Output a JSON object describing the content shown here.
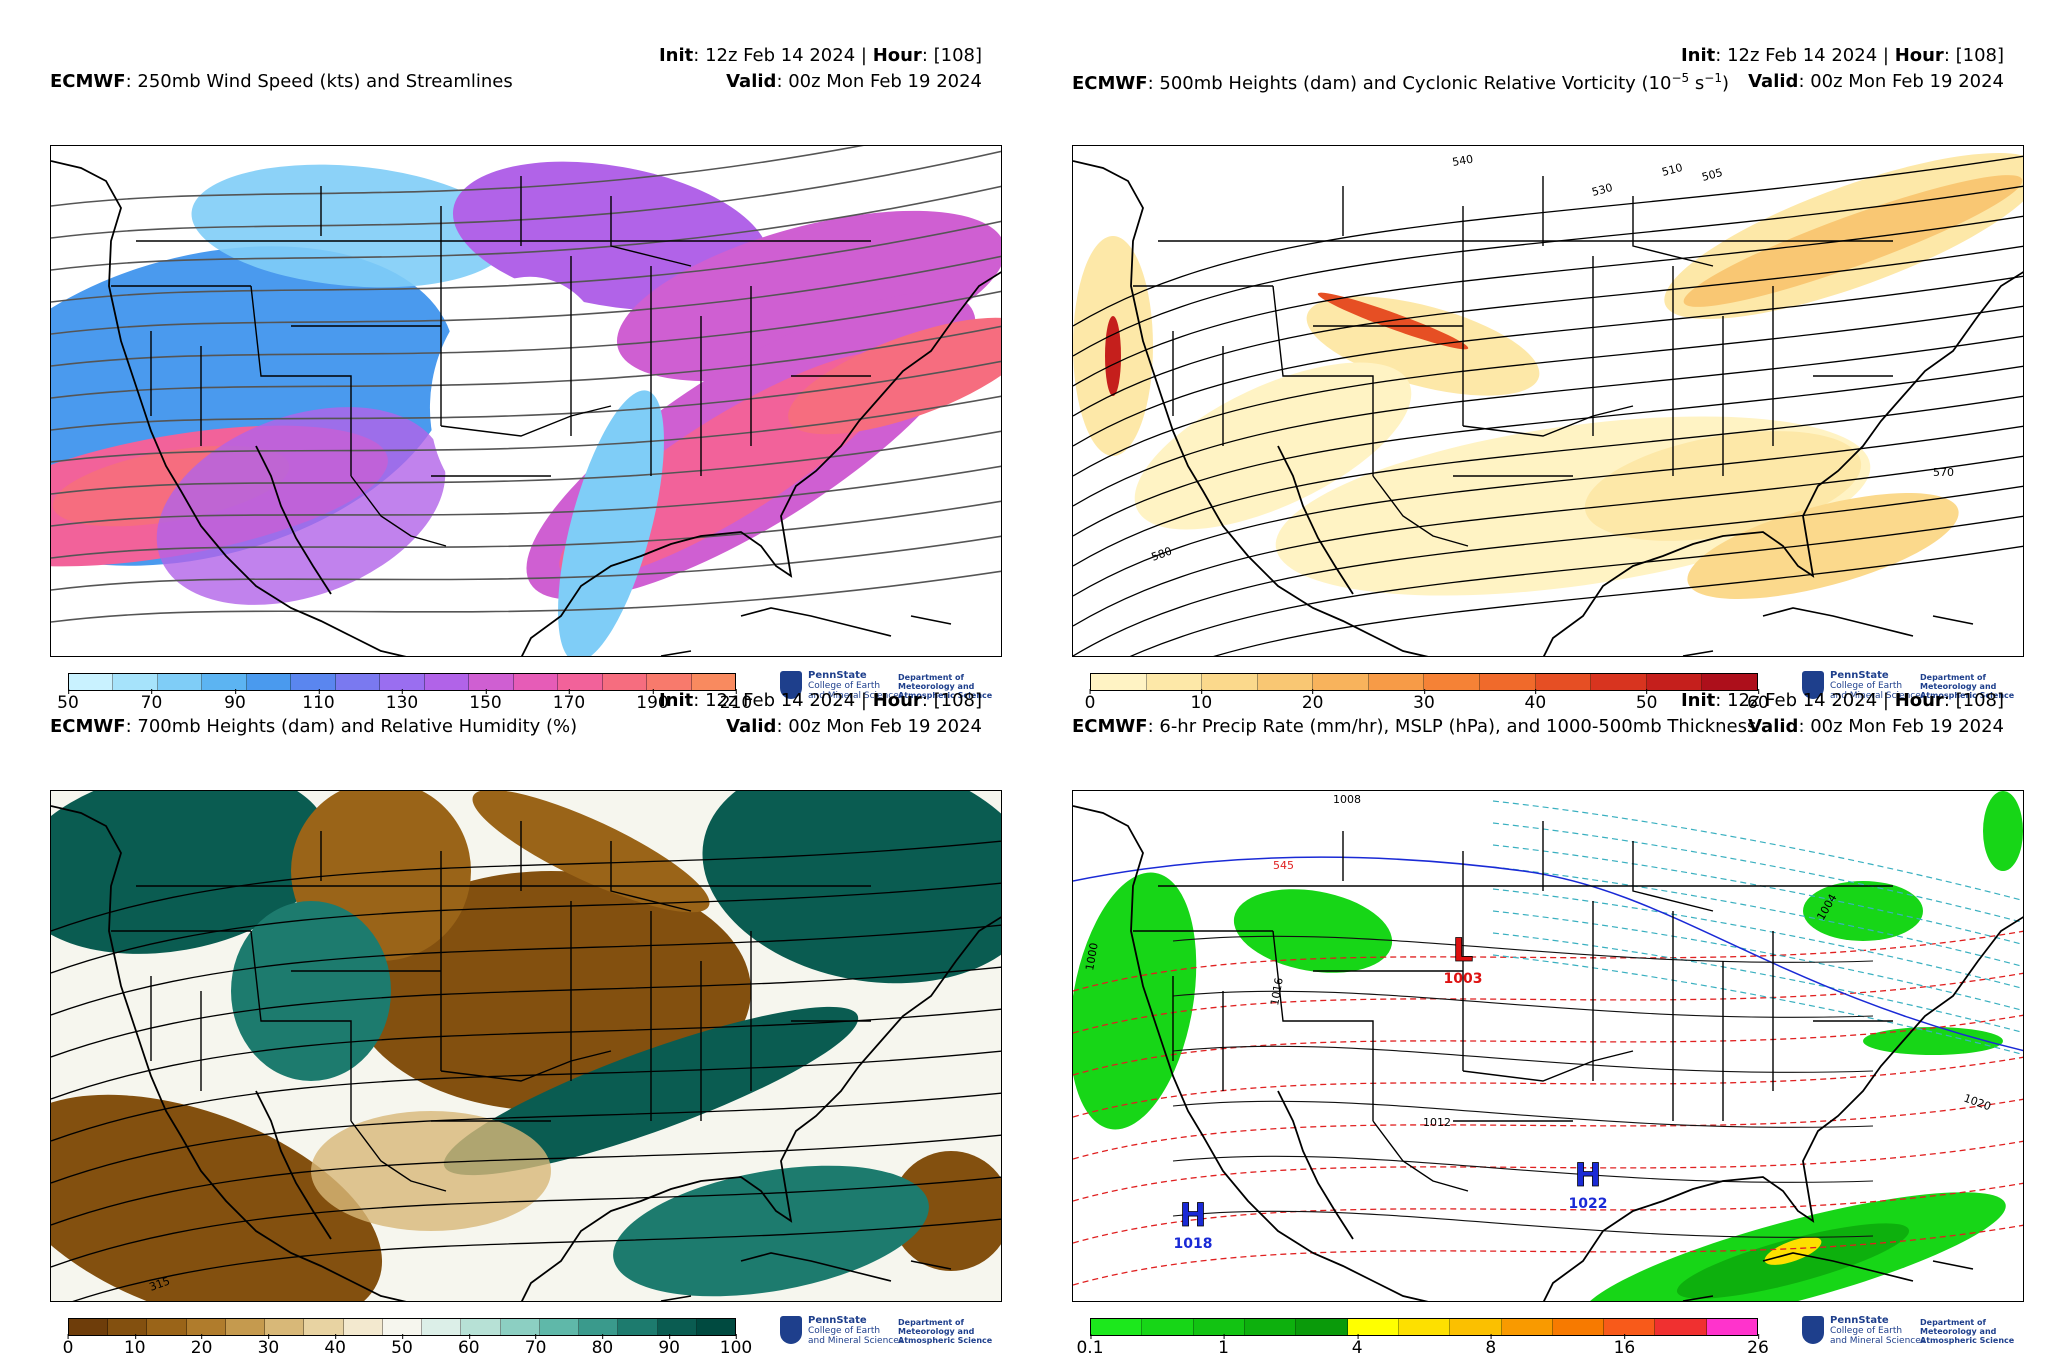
{
  "panels": [
    {
      "model": "ECMWF",
      "title": ": 250mb Wind Speed (kts) and Streamlines",
      "init_label": "Init",
      "init_value": ": 12z Feb 14 2024 | ",
      "hour_label": "Hour",
      "hour_value": ": [108]",
      "valid_label": "Valid",
      "valid_value": ": 00z Mon Feb 19 2024",
      "colorbar_ticks": [
        "50",
        "70",
        "90",
        "110",
        "130",
        "150",
        "170",
        "190",
        "210"
      ],
      "colorbar_colors": [
        "#c9f2ff",
        "#a6e3fb",
        "#7fcdf7",
        "#5cb4f2",
        "#4a9aee",
        "#5a86ef",
        "#7a79f0",
        "#9a6ef0",
        "#b163e8",
        "#cf5fd2",
        "#e65cb7",
        "#f2629a",
        "#f66d7f",
        "#f87a6c",
        "#f98a5f"
      ]
    },
    {
      "model": "ECMWF",
      "title": ": 500mb Heights (dam) and Cyclonic Relative Vorticity (10",
      "title_sup": "−5",
      "title_tail": " s",
      "title_sup2": "−1",
      "title_end": ")",
      "init_label": "Init",
      "init_value": ": 12z Feb 14 2024 | ",
      "hour_label": "Hour",
      "hour_value": ": [108]",
      "valid_label": "Valid",
      "valid_value": ": 00z Mon Feb 19 2024",
      "colorbar_ticks": [
        "0",
        "10",
        "20",
        "30",
        "40",
        "50",
        "60"
      ],
      "colorbar_colors": [
        "#fff3c4",
        "#fde8a8",
        "#fbd98c",
        "#f9c773",
        "#f8b35c",
        "#f79b47",
        "#f58236",
        "#f06a2b",
        "#e64f24",
        "#d8341f",
        "#c51f1c",
        "#ad0f1b"
      ],
      "contour_labels": [
        "540",
        "530",
        "510",
        "505",
        "570",
        "580"
      ]
    },
    {
      "model": "ECMWF",
      "title": ": 700mb Heights (dam) and Relative Humidity (%)",
      "init_label": "Init",
      "init_value": ": 12z Feb 14 2024 | ",
      "hour_label": "Hour",
      "hour_value": ": [108]",
      "valid_label": "Valid",
      "valid_value": ": 00z Mon Feb 19 2024",
      "colorbar_ticks": [
        "0",
        "10",
        "20",
        "30",
        "40",
        "50",
        "60",
        "70",
        "80",
        "90",
        "100"
      ],
      "colorbar_colors": [
        "#6e3d0a",
        "#83500f",
        "#9a6418",
        "#b07c2c",
        "#c59a4e",
        "#d8b878",
        "#e8d3a2",
        "#f3e9cf",
        "#f6f6ee",
        "#dcefe8",
        "#b7e1d6",
        "#8ccfc2",
        "#5fb8a9",
        "#3a9a8c",
        "#1d7b6e",
        "#0a5c51",
        "#004a40"
      ],
      "contour_labels": [
        "315"
      ]
    },
    {
      "model": "ECMWF",
      "title": ": 6-hr Precip Rate (mm/hr), MSLP (hPa), and 1000-500mb Thickness",
      "init_label": "Init",
      "init_value": ": 12z Feb 14 2024 | ",
      "hour_label": "Hour",
      "hour_value": ": [108]",
      "valid_label": "Valid",
      "valid_value": ": 00z Mon Feb 19 2024",
      "colorbar_ticks": [
        "0.1",
        "1",
        "4",
        "8",
        "16",
        "26"
      ],
      "colorbar_colors": [
        "#1ce81c",
        "#17d617",
        "#12c312",
        "#0db00d",
        "#0a9a0a",
        "#ffff00",
        "#fde000",
        "#fbc000",
        "#f99a00",
        "#f77a00",
        "#f85a1a",
        "#f03030",
        "#ff33cc"
      ],
      "pressure_centers": [
        {
          "letter": "L",
          "value": "1003",
          "color": "#dd1111"
        },
        {
          "letter": "H",
          "value": "1022",
          "color": "#1a2ad6"
        },
        {
          "letter": "H",
          "value": "1018",
          "color": "#1a2ad6"
        }
      ],
      "contour_labels": [
        "1008",
        "1016",
        "1012",
        "1020",
        "1004",
        "1000",
        "545"
      ]
    }
  ],
  "logo": {
    "university": "PennState",
    "college_line1": "College of Earth",
    "college_line2": "and Mineral Sciences",
    "dept_line1": "Department of",
    "dept_line2": "Meteorology and",
    "dept_line3": "Atmospheric Science"
  }
}
